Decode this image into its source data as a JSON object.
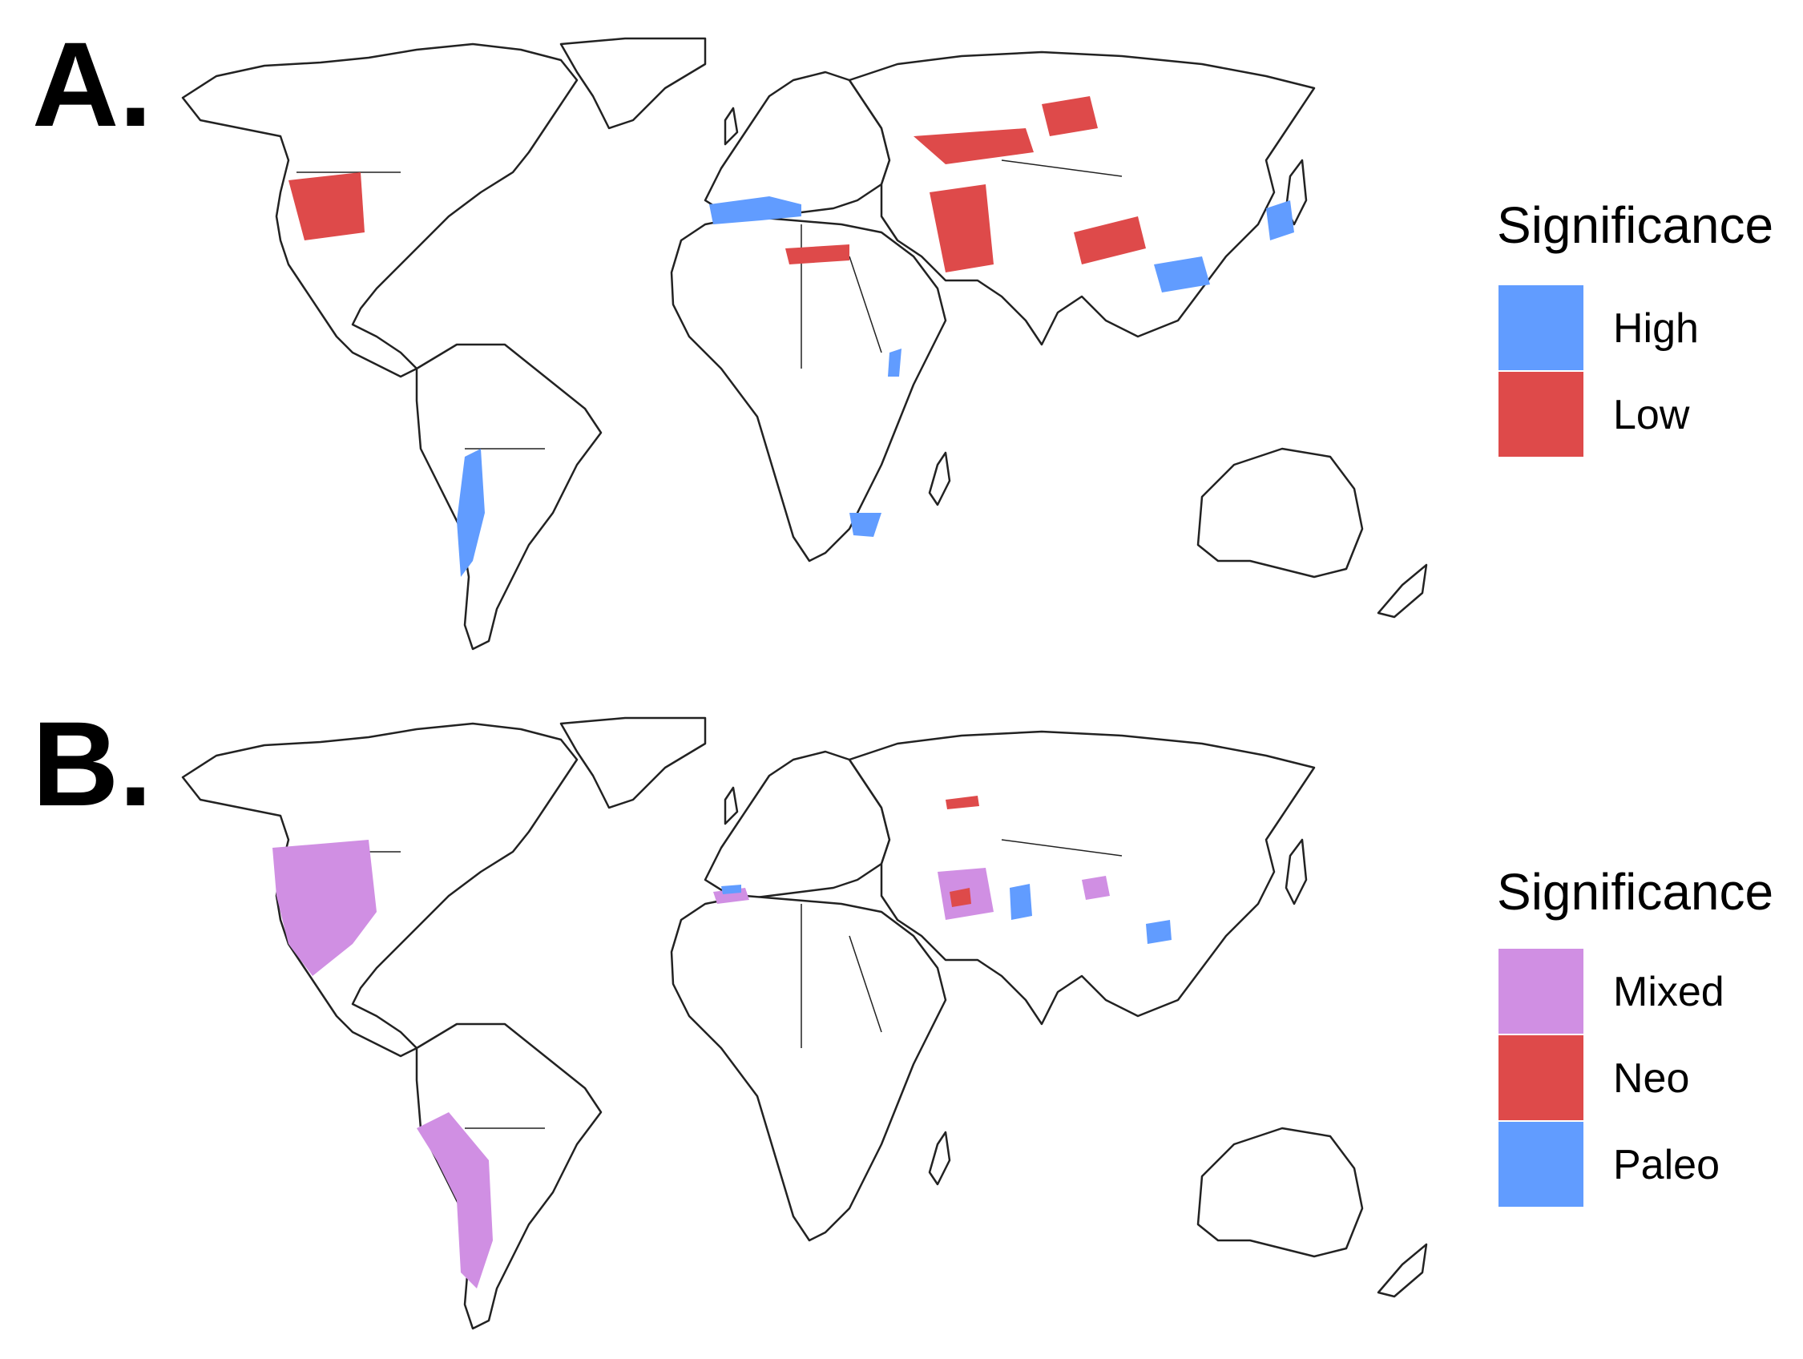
{
  "panels": [
    {
      "label": "A.",
      "legend": {
        "title": "Significance",
        "items": [
          {
            "label": "High",
            "color": "#619CFF"
          },
          {
            "label": "Low",
            "color": "#DE4A4A"
          }
        ]
      }
    },
    {
      "label": "B.",
      "legend": {
        "title": "Significance",
        "items": [
          {
            "label": "Mixed",
            "color": "#D08FE3"
          },
          {
            "label": "Neo",
            "color": "#DE4A4A"
          },
          {
            "label": "Paleo",
            "color": "#619CFF"
          }
        ]
      }
    }
  ],
  "map": {
    "type": "world choropleth",
    "outline_color": "#222222",
    "land_color": "#ffffff"
  }
}
